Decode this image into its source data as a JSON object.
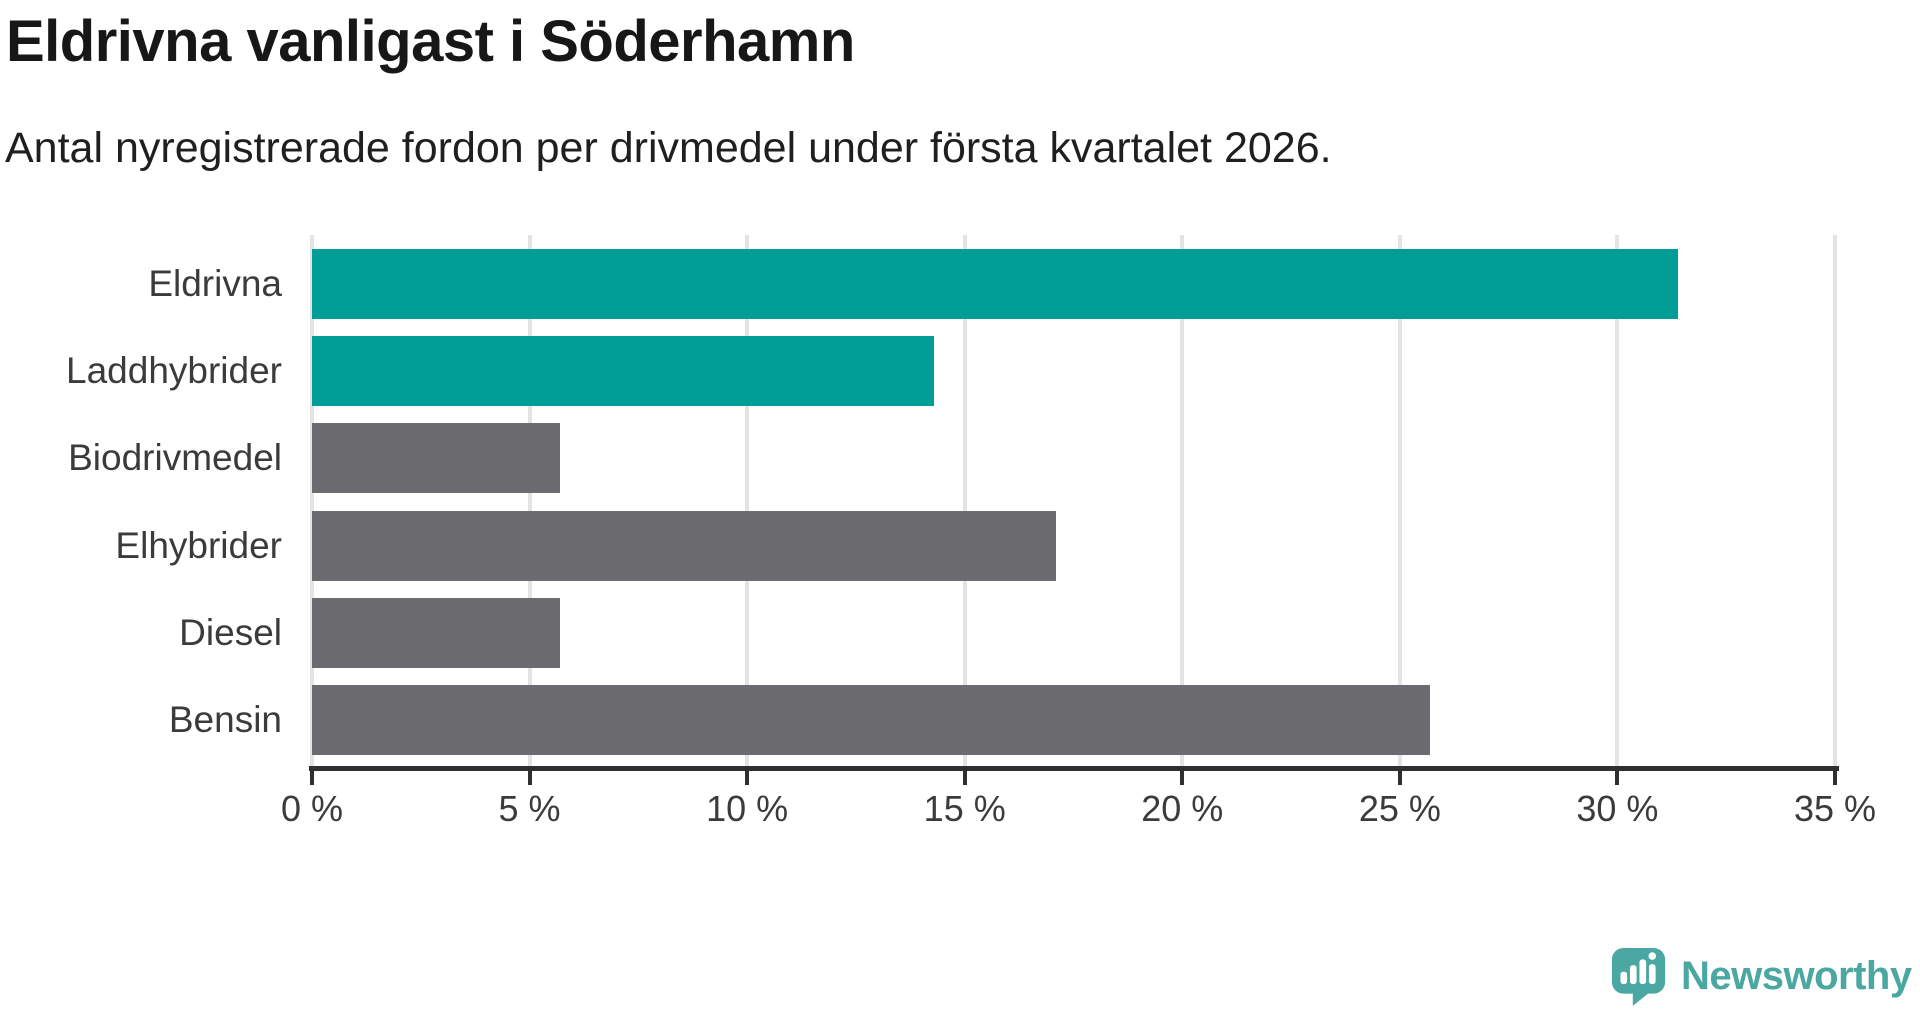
{
  "header": {
    "title": "Eldrivna vanligast i Söderhamn",
    "subtitle": "Antal nyregistrerade fordon per drivmedel under första kvartalet 2026."
  },
  "chart_data": {
    "type": "bar",
    "orientation": "horizontal",
    "title": "Eldrivna vanligast i Söderhamn",
    "subtitle": "Antal nyregistrerade fordon per drivmedel under första kvartalet 2026.",
    "categories": [
      "Eldrivna",
      "Laddhybrider",
      "Biodrivmedel",
      "Elhybrider",
      "Diesel",
      "Bensin"
    ],
    "values": [
      31.4,
      14.3,
      5.7,
      17.1,
      5.7,
      25.7
    ],
    "unit": "%",
    "bar_colors": [
      "#009E97",
      "#009E97",
      "#6C6B70",
      "#6C6B70",
      "#6C6B70",
      "#6C6B70"
    ],
    "highlight_color": "#009E97",
    "default_bar_color": "#6C6B70",
    "xlim": [
      0,
      35
    ],
    "xticks": [
      0,
      5,
      10,
      15,
      20,
      25,
      30,
      35
    ],
    "xtick_labels": [
      "0 %",
      "5 %",
      "10 %",
      "15 %",
      "20 %",
      "25 %",
      "30 %",
      "35 %"
    ],
    "grid": "vertical",
    "legend": "none"
  },
  "colors": {
    "gridline": "#E4E4E4",
    "axis": "#2F2F2F",
    "logo": "#4BA7A1"
  },
  "logo": {
    "text": "Newsworthy"
  }
}
